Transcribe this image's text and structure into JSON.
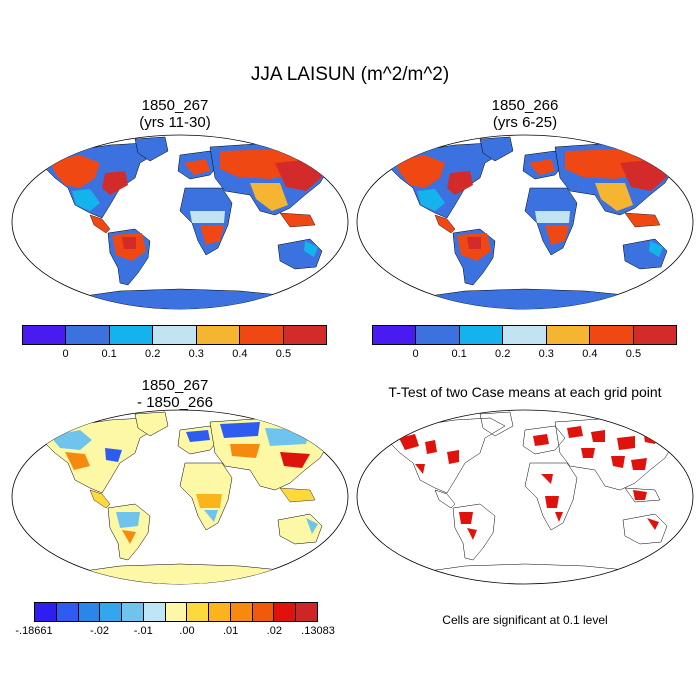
{
  "title": "JJA LAISUN (m^2/m^2)",
  "panels": {
    "top_left": {
      "title_line1": "1850_267",
      "title_line2": "(yrs 11-30)"
    },
    "top_right": {
      "title_line1": "1850_266",
      "title_line2": "(yrs 6-25)"
    },
    "bottom_left": {
      "title_line1": "1850_267",
      "title_line2": "- 1850_266"
    },
    "bottom_right": {
      "title_line1": "T-Test of two Case means at each grid point"
    }
  },
  "colorbar_main": {
    "colors": [
      "#4a1bf0",
      "#3c72e0",
      "#14b3ee",
      "#c2e4f2",
      "#f6b531",
      "#ef4813",
      "#d32a2a"
    ],
    "labels": [
      "0",
      "0.1",
      "0.2",
      "0.3",
      "0.4",
      "0.5"
    ]
  },
  "colorbar_diff": {
    "colors": [
      "#2e1ef0",
      "#2e5cf0",
      "#2a86e8",
      "#33a6ee",
      "#6fc4ee",
      "#bfe6f4",
      "#fdf8a6",
      "#fdd93c",
      "#fbb41e",
      "#f68a10",
      "#f05a0a",
      "#e0120c",
      "#cc2626"
    ],
    "labels": [
      "-.18661",
      "-.02",
      "-.01",
      ".00",
      ".01",
      ".02",
      ".13083"
    ]
  },
  "significance_note": "Cells are significant at 0.1 level",
  "colors": {
    "ocean": "#ffffff",
    "land_main": "#3c72e0",
    "land_diff": "#fdf8a6",
    "significant": "#e0120c"
  }
}
